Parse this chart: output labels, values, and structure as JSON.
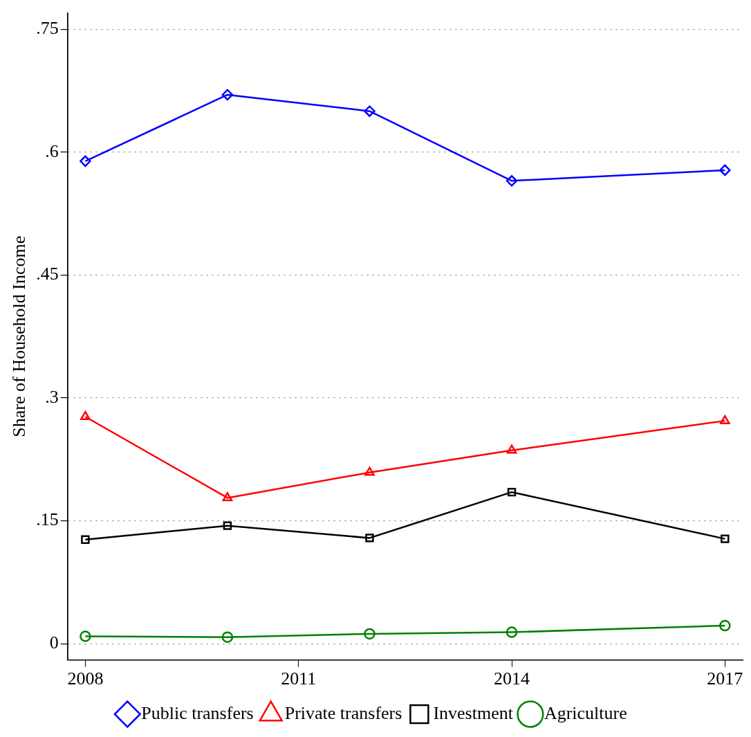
{
  "chart_data": {
    "type": "line",
    "ylabel": "Share of Household Income",
    "x": [
      2008,
      2010,
      2012,
      2014,
      2017
    ],
    "xlim": [
      2007.75,
      2017.25
    ],
    "xticks": [
      2008,
      2011,
      2014,
      2017
    ],
    "ylim": [
      -0.02,
      0.77
    ],
    "yticks": [
      {
        "value": 0,
        "label": "0"
      },
      {
        "value": 0.15,
        "label": ".15"
      },
      {
        "value": 0.3,
        "label": ".3"
      },
      {
        "value": 0.45,
        "label": ".45"
      },
      {
        "value": 0.6,
        "label": ".6"
      },
      {
        "value": 0.75,
        "label": ".75"
      }
    ],
    "grid": "y",
    "legend": "bottom",
    "series": [
      {
        "name": "Public transfers",
        "color": "#0000ff",
        "marker": "diamond",
        "values": [
          0.589,
          0.67,
          0.65,
          0.565,
          0.578
        ]
      },
      {
        "name": "Private transfers",
        "color": "#ff0000",
        "marker": "triangle",
        "values": [
          0.277,
          0.178,
          0.209,
          0.236,
          0.272
        ]
      },
      {
        "name": "Investment",
        "color": "#000000",
        "marker": "square",
        "values": [
          0.127,
          0.144,
          0.129,
          0.185,
          0.128
        ]
      },
      {
        "name": "Agriculture",
        "color": "#008000",
        "marker": "circle",
        "values": [
          0.009,
          0.008,
          0.012,
          0.014,
          0.022
        ]
      }
    ]
  }
}
